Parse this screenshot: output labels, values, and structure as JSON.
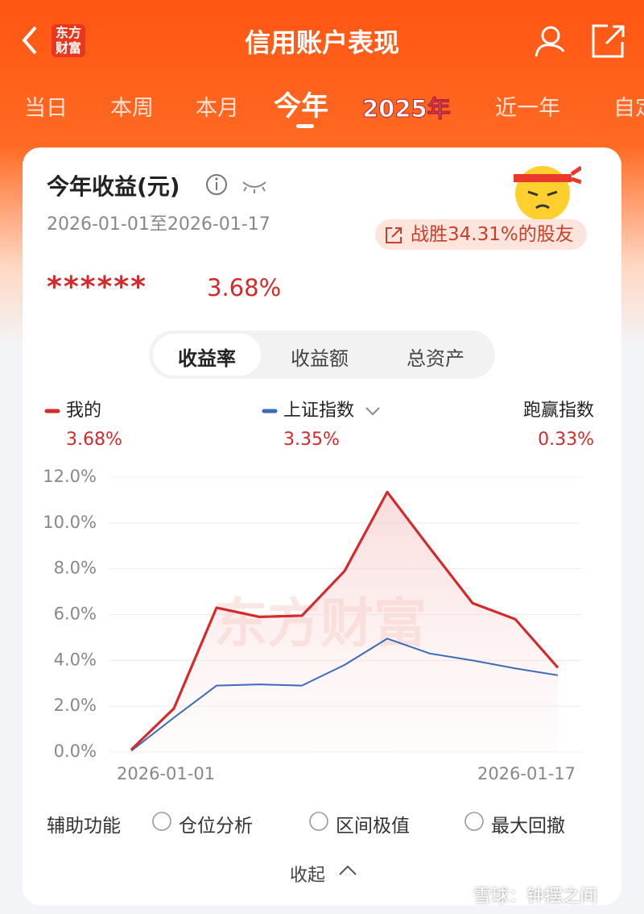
{
  "header": {
    "logo": "东方财富",
    "title": "信用账户表现"
  },
  "tabs": [
    "当日",
    "本周",
    "本月",
    "今年",
    "2025年",
    "近一年",
    "自定"
  ],
  "card": {
    "title": "今年收益(元)",
    "date_range": "2026-01-01至2026-01-17",
    "badge": "战胜34.31%的股友",
    "hidden_amount": "******",
    "rate": "3.68%",
    "segments": [
      "收益率",
      "收益额",
      "总资产"
    ],
    "chart_watermark": "东方财富",
    "options_label": "辅助功能",
    "options": [
      "仓位分析",
      "区间极值",
      "最大回撤"
    ],
    "collapse": "收起"
  },
  "footer": {
    "watermark": "雪球：钟摆之间"
  },
  "chart_data": {
    "type": "line",
    "categories": [
      "2026-01-01",
      null,
      null,
      null,
      null,
      null,
      null,
      null,
      null,
      null,
      "2026-01-17"
    ],
    "series": [
      {
        "name": "我的",
        "color": "#d42a2a",
        "value_label": "3.68%",
        "values": [
          0.1,
          1.9,
          6.3,
          5.9,
          5.95,
          7.9,
          11.35,
          8.9,
          6.5,
          5.8,
          3.68
        ]
      },
      {
        "name": "上证指数",
        "color": "#3a6ab8",
        "value_label": "3.35%",
        "values": [
          0.05,
          1.5,
          2.9,
          2.95,
          2.9,
          3.8,
          4.95,
          4.3,
          4.0,
          3.65,
          3.35
        ]
      }
    ],
    "excess": {
      "name": "跑赢指数",
      "value_label": "0.33%"
    },
    "ylim": [
      0,
      12
    ],
    "yticks": [
      {
        "value": 0,
        "label": "0.0%"
      },
      {
        "value": 2,
        "label": "2.0%"
      },
      {
        "value": 4,
        "label": "4.0%"
      },
      {
        "value": 6,
        "label": "6.0%"
      },
      {
        "value": 8,
        "label": "8.0%"
      },
      {
        "value": 10,
        "label": "10.0%"
      },
      {
        "value": 12,
        "label": "12.0%"
      }
    ],
    "grid": true
  }
}
